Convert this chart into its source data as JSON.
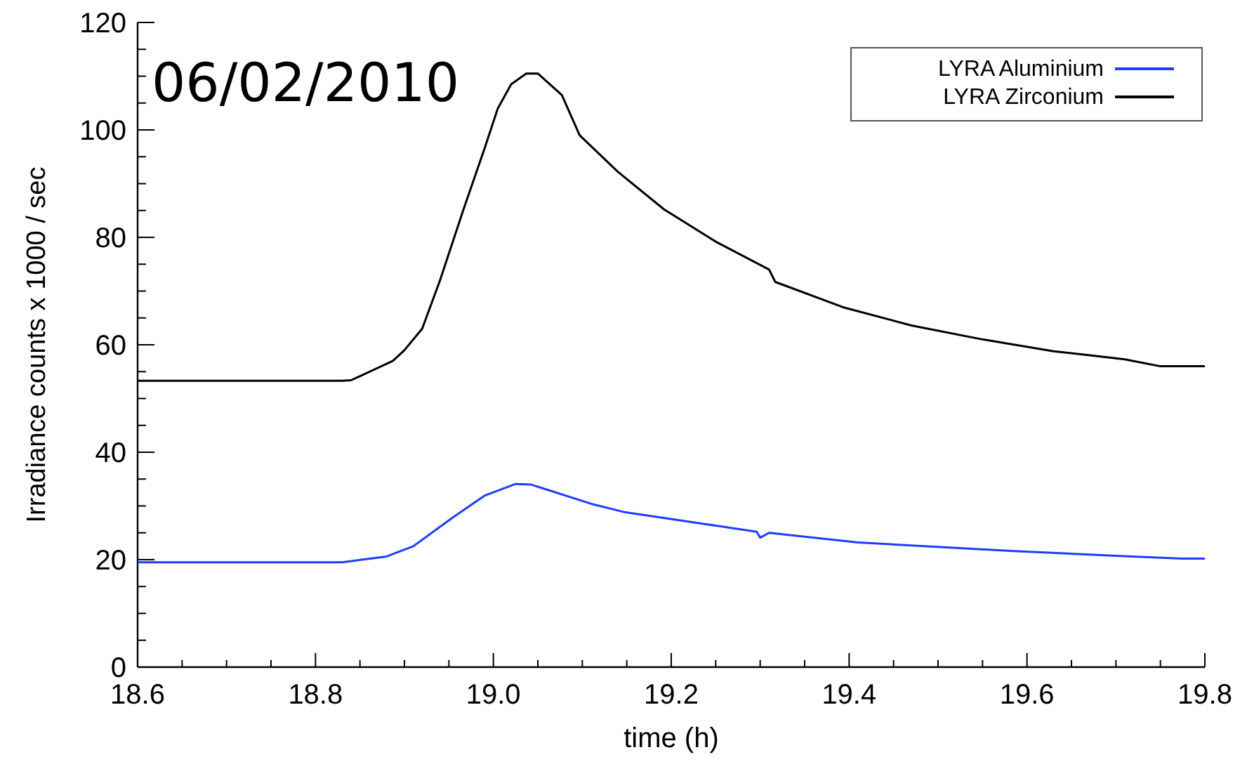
{
  "chart_data": {
    "type": "line",
    "xlabel": "time (h)",
    "ylabel": "Irradiance counts x 1000 / sec",
    "annotations": [
      "06/02/2010"
    ],
    "xlim": [
      18.6,
      19.8
    ],
    "ylim": [
      0,
      120
    ],
    "xticks": [
      18.6,
      {
        "value": 18.65,
        "label": null
      },
      {
        "value": 18.7,
        "label": null
      },
      {
        "value": 18.75,
        "label": null
      },
      {
        "value": 18.8,
        "label": "18.8"
      },
      {
        "value": 18.85,
        "label": null
      },
      {
        "value": 18.9,
        "label": null
      },
      {
        "value": 18.95,
        "label": null
      },
      {
        "value": 19,
        "label": "19.0"
      },
      {
        "value": 19.05,
        "label": null
      },
      {
        "value": 19.1,
        "label": null
      },
      {
        "value": 19.15,
        "label": null
      },
      {
        "value": 19.2,
        "label": "19.2"
      },
      {
        "value": 19.25,
        "label": null
      },
      {
        "value": 19.3,
        "label": null
      },
      {
        "value": 19.35,
        "label": null
      },
      {
        "value": 19.4,
        "label": "19.4"
      },
      {
        "value": 19.45,
        "label": null
      },
      {
        "value": 19.5,
        "label": null
      },
      {
        "value": 19.55,
        "label": null
      },
      {
        "value": 19.6,
        "label": "19.6"
      },
      {
        "value": 19.65,
        "label": null
      },
      {
        "value": 19.7,
        "label": null
      },
      {
        "value": 19.75,
        "label": null
      },
      {
        "value": 19.8,
        "label": "19.8"
      }
    ],
    "yticks": [
      0,
      {
        "value": 5,
        "label": null
      },
      {
        "value": 10,
        "label": null
      },
      {
        "value": 15,
        "label": null
      },
      20,
      {
        "value": 25,
        "label": null
      },
      {
        "value": 30,
        "label": null
      },
      {
        "value": 35,
        "label": null
      },
      40,
      {
        "value": 45,
        "label": null
      },
      {
        "value": 50,
        "label": null
      },
      {
        "value": 55,
        "label": null
      },
      60,
      {
        "value": 65,
        "label": null
      },
      {
        "value": 70,
        "label": null
      },
      {
        "value": 75,
        "label": null
      },
      80,
      {
        "value": 85,
        "label": null
      },
      {
        "value": 90,
        "label": null
      },
      {
        "value": 95,
        "label": null
      },
      100,
      {
        "value": 105,
        "label": null
      },
      {
        "value": 110,
        "label": null
      },
      {
        "value": 115,
        "label": null
      },
      120
    ],
    "grid": false,
    "legend": "top right",
    "marker": "none",
    "line_style": "solid",
    "series": [
      {
        "name": "LYRA Aluminium",
        "color": "#1f3cff",
        "x": [
          18.6,
          18.83,
          18.88,
          18.91,
          18.954,
          18.99,
          19.025,
          19.042,
          19.11,
          19.146,
          19.235,
          19.296,
          19.3,
          19.31,
          19.41,
          19.585,
          19.718,
          19.775,
          19.8
        ],
        "values": [
          19.5,
          19.5,
          20.6,
          22.5,
          27.8,
          31.9,
          34.1,
          34,
          30.4,
          28.9,
          26.7,
          25.2,
          24.1,
          25,
          23.2,
          21.6,
          20.6,
          20.2,
          20.2
        ]
      },
      {
        "name": "LYRA Zirconium",
        "color": "#000000",
        "x": [
          18.6,
          18.83,
          18.84,
          18.887,
          18.9,
          18.92,
          18.94,
          18.966,
          18.99,
          19.005,
          19.02,
          19.037,
          19.05,
          19.077,
          19.097,
          19.14,
          19.192,
          19.25,
          19.31,
          19.317,
          19.393,
          19.47,
          19.55,
          19.63,
          19.71,
          19.75,
          19.8
        ],
        "values": [
          53.3,
          53.3,
          53.4,
          57,
          59,
          63,
          72,
          85,
          96.5,
          104,
          108.5,
          110.5,
          110.5,
          106.5,
          99,
          92.2,
          85.2,
          79.2,
          74,
          71.7,
          67,
          63.6,
          61,
          58.8,
          57.3,
          56,
          56
        ]
      }
    ]
  }
}
